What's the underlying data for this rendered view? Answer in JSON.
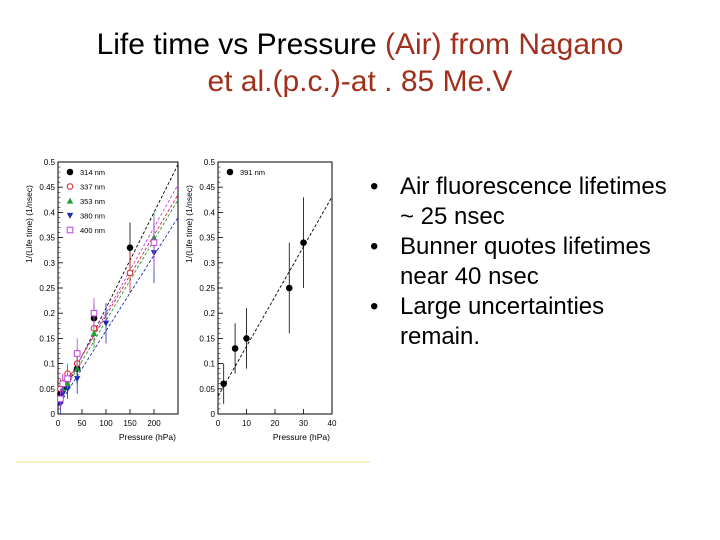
{
  "slide": {
    "title_line1_main": "Life time vs Pressure ",
    "title_line1_accent": "(Air) from Nagano",
    "title_line2_accent": "et al.(p.c.)-at . 85 Me.V",
    "bullets": [
      "Air fluorescence lifetimes ~ 25 nsec",
      "Bunner quotes lifetimes near 40 nsec",
      "Large uncertainties remain."
    ],
    "bullet_glyph": "•"
  },
  "colors": {
    "title_accent": "#a0301c",
    "figure_baseline": "#f1eaa8",
    "series_314": "#000000",
    "series_337": "#e0202a",
    "series_353": "#20a030",
    "series_380": "#1a2fb0",
    "series_400": "#c040e0",
    "series_391": "#000000"
  },
  "chart_data": [
    {
      "type": "scatter",
      "xlabel": "Pressure (hPa)",
      "ylabel": "1/(Life time) (1/nsec)",
      "xlim": [
        0,
        250
      ],
      "ylim": [
        0,
        0.5
      ],
      "xticks": [
        0,
        50,
        100,
        150,
        200
      ],
      "yticks": [
        0,
        0.05,
        0.1,
        0.15,
        0.2,
        0.25,
        0.3,
        0.35,
        0.4,
        0.45,
        0.5
      ],
      "grid": false,
      "legend_position": "top-left",
      "fit_lines": true,
      "series": [
        {
          "name": "314 nm",
          "marker": "circle-filled",
          "color": "#000000",
          "x": [
            5,
            10,
            20,
            40,
            75,
            150
          ],
          "y": [
            0.04,
            0.05,
            0.07,
            0.09,
            0.19,
            0.33
          ],
          "err": [
            0.02,
            0.02,
            0.02,
            0.03,
            0.03,
            0.05
          ],
          "fit": [
            0.02,
            0.0019
          ]
        },
        {
          "name": "337 nm",
          "marker": "circle-open",
          "color": "#e0202a",
          "x": [
            5,
            10,
            20,
            40,
            75,
            150
          ],
          "y": [
            0.05,
            0.06,
            0.08,
            0.1,
            0.17,
            0.28
          ],
          "err": [
            0.02,
            0.02,
            0.02,
            0.03,
            0.03,
            0.04
          ],
          "fit": [
            0.035,
            0.0016
          ]
        },
        {
          "name": "353 nm",
          "marker": "triangle-up",
          "color": "#20a030",
          "x": [
            5,
            10,
            20,
            40,
            75,
            200
          ],
          "y": [
            0.03,
            0.05,
            0.06,
            0.09,
            0.16,
            0.35
          ],
          "err": [
            0.02,
            0.02,
            0.02,
            0.03,
            0.03,
            0.05
          ],
          "fit": [
            0.025,
            0.0016
          ]
        },
        {
          "name": "380 nm",
          "marker": "triangle-down",
          "color": "#1a2fb0",
          "x": [
            5,
            10,
            20,
            40,
            100,
            200
          ],
          "y": [
            0.02,
            0.04,
            0.05,
            0.07,
            0.18,
            0.32
          ],
          "err": [
            0.02,
            0.02,
            0.02,
            0.03,
            0.04,
            0.06
          ],
          "fit": [
            0.015,
            0.0015
          ]
        },
        {
          "name": "400 nm",
          "marker": "square-open",
          "color": "#c040e0",
          "x": [
            5,
            10,
            20,
            40,
            75,
            200
          ],
          "y": [
            0.03,
            0.06,
            0.07,
            0.12,
            0.2,
            0.34
          ],
          "err": [
            0.02,
            0.02,
            0.02,
            0.03,
            0.03,
            0.05
          ],
          "fit": [
            0.03,
            0.0017
          ]
        }
      ]
    },
    {
      "type": "scatter",
      "xlabel": "Pressure (hPa)",
      "ylabel": "1/(Life time) (1/nsec)",
      "xlim": [
        0,
        40
      ],
      "ylim": [
        0,
        0.5
      ],
      "xticks": [
        0,
        10,
        20,
        30,
        40
      ],
      "yticks": [
        0,
        0.05,
        0.1,
        0.15,
        0.2,
        0.25,
        0.3,
        0.35,
        0.4,
        0.45,
        0.5
      ],
      "grid": false,
      "legend_position": "top-left",
      "fit_lines": true,
      "series": [
        {
          "name": "391 nm",
          "marker": "circle-filled",
          "color": "#000000",
          "x": [
            2,
            6,
            10,
            25,
            30
          ],
          "y": [
            0.06,
            0.13,
            0.15,
            0.25,
            0.34
          ],
          "err": [
            0.04,
            0.05,
            0.06,
            0.09,
            0.09
          ],
          "fit": [
            0.035,
            0.0099
          ]
        }
      ]
    }
  ]
}
